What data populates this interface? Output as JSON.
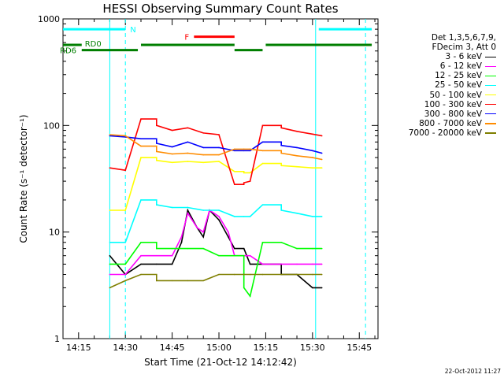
{
  "chart_data": {
    "type": "line",
    "title": "HESSI Observing Summary Count Rates",
    "xlabel": "Start Time (21-Oct-12 14:12:42)",
    "ylabel": "Count Rate (s⁻¹ detector⁻¹)",
    "yscale": "log",
    "ylim": [
      1,
      1000
    ],
    "xlim": [
      "14:10",
      "15:51"
    ],
    "x_ticks": [
      "14:15",
      "14:30",
      "14:45",
      "15:00",
      "15:15",
      "15:30",
      "15:45"
    ],
    "y_ticks": [
      "1",
      "10",
      "100",
      "1000"
    ],
    "legend_position": "right",
    "legend_header": [
      "Det 1,3,5,6,7,9,",
      "FDecim 3, Att 0"
    ],
    "timestamp": "22-Oct-2012 11:27",
    "flag_labels": {
      "N": "N",
      "F": "F",
      "RD0": "RD0",
      "RD6": "RD6"
    },
    "flag_bars": [
      {
        "name": "N",
        "color": "#00ffff",
        "y": 800,
        "segments": [
          [
            "14:10",
            "14:30"
          ],
          [
            "15:32",
            "15:49"
          ]
        ]
      },
      {
        "name": "F",
        "color": "#ff0000",
        "y": 680,
        "segments": [
          [
            "14:52",
            "15:05"
          ]
        ]
      },
      {
        "name": "RD0",
        "color": "#007f00",
        "y": 570,
        "segments": [
          [
            "14:10",
            "14:16"
          ],
          [
            "14:35",
            "15:05"
          ],
          [
            "15:15",
            "15:49"
          ]
        ]
      },
      {
        "name": "RD6",
        "color": "#007f00",
        "y": 510,
        "segments": [
          [
            "14:16",
            "14:34"
          ],
          [
            "15:05",
            "15:14"
          ]
        ]
      }
    ],
    "vlines": [
      {
        "t": "14:25",
        "color": "#00ffff",
        "style": "solid"
      },
      {
        "t": "14:30",
        "color": "#00ffff",
        "style": "dashed"
      },
      {
        "t": "15:31",
        "color": "#00ffff",
        "style": "solid"
      },
      {
        "t": "15:47",
        "color": "#00ffff",
        "style": "dashed"
      }
    ],
    "x_breaks": [
      "14:25",
      "14:35",
      "15:05",
      "15:14",
      "15:33"
    ],
    "series": [
      {
        "name": "3 - 6 keV",
        "color": "#000000",
        "x": [
          "14:25",
          "14:30",
          "14:35",
          "14:40",
          "14:45",
          "14:48",
          "14:50",
          "14:53",
          "14:55",
          "14:57",
          "15:00",
          "15:03",
          "15:05",
          "15:08",
          "15:10",
          "15:14",
          "15:20",
          "15:25",
          "15:30",
          "15:33"
        ],
        "values": [
          6,
          4,
          5,
          5,
          5,
          8,
          16,
          11,
          9,
          16,
          13,
          9,
          7,
          7,
          5,
          5,
          4,
          4,
          3,
          3
        ]
      },
      {
        "name": "6 - 12 keV",
        "color": "#ff00ff",
        "x": [
          "14:25",
          "14:30",
          "14:35",
          "14:40",
          "14:45",
          "14:48",
          "14:50",
          "14:53",
          "14:55",
          "14:57",
          "15:00",
          "15:03",
          "15:05",
          "15:08",
          "15:10",
          "15:14",
          "15:20",
          "15:25",
          "15:30",
          "15:33"
        ],
        "values": [
          4,
          4,
          6,
          6,
          6,
          9,
          15,
          11,
          10,
          16,
          14,
          10,
          6,
          6,
          6,
          5,
          5,
          5,
          5,
          5
        ]
      },
      {
        "name": "12 - 25 keV",
        "color": "#00ff00",
        "x": [
          "14:25",
          "14:30",
          "14:35",
          "14:40",
          "14:45",
          "14:50",
          "14:55",
          "15:00",
          "15:05",
          "15:08",
          "15:10",
          "15:14",
          "15:20",
          "15:25",
          "15:30",
          "15:33"
        ],
        "values": [
          5,
          5,
          8,
          7,
          7,
          7,
          7,
          6,
          6,
          3,
          2.5,
          8,
          8,
          7,
          7,
          7
        ]
      },
      {
        "name": "25 - 50 keV",
        "color": "#00ffff",
        "x": [
          "14:25",
          "14:30",
          "14:35",
          "14:40",
          "14:45",
          "14:50",
          "14:55",
          "15:00",
          "15:05",
          "15:08",
          "15:10",
          "15:14",
          "15:20",
          "15:25",
          "15:30",
          "15:33"
        ],
        "values": [
          8,
          8,
          20,
          18,
          17,
          17,
          16,
          16,
          14,
          14,
          14,
          18,
          16,
          15,
          14,
          14
        ]
      },
      {
        "name": "50 - 100 keV",
        "color": "#ffff00",
        "x": [
          "14:25",
          "14:30",
          "14:35",
          "14:40",
          "14:45",
          "14:50",
          "14:55",
          "15:00",
          "15:05",
          "15:08",
          "15:10",
          "15:14",
          "15:20",
          "15:25",
          "15:30",
          "15:33"
        ],
        "values": [
          16,
          16,
          50,
          47,
          45,
          46,
          45,
          46,
          37,
          36,
          36,
          44,
          42,
          41,
          40,
          40
        ]
      },
      {
        "name": "100 - 300 keV",
        "color": "#ff0000",
        "x": [
          "14:25",
          "14:30",
          "14:35",
          "14:40",
          "14:45",
          "14:50",
          "14:55",
          "15:00",
          "15:05",
          "15:08",
          "15:10",
          "15:14",
          "15:20",
          "15:25",
          "15:30",
          "15:33"
        ],
        "values": [
          40,
          38,
          115,
          100,
          90,
          95,
          85,
          82,
          28,
          29,
          30,
          100,
          95,
          88,
          83,
          80
        ]
      },
      {
        "name": "300 - 800 keV",
        "color": "#0000ff",
        "x": [
          "14:25",
          "14:30",
          "14:35",
          "14:40",
          "14:45",
          "14:50",
          "14:55",
          "15:00",
          "15:05",
          "15:08",
          "15:10",
          "15:14",
          "15:20",
          "15:25",
          "15:30",
          "15:33"
        ],
        "values": [
          80,
          78,
          75,
          68,
          63,
          70,
          62,
          62,
          58,
          58,
          58,
          70,
          65,
          62,
          58,
          55
        ]
      },
      {
        "name": "800 - 7000 keV",
        "color": "#ff8c00",
        "x": [
          "14:25",
          "14:30",
          "14:35",
          "14:40",
          "14:45",
          "14:50",
          "14:55",
          "15:00",
          "15:05",
          "15:08",
          "15:10",
          "15:14",
          "15:20",
          "15:25",
          "15:30",
          "15:33"
        ],
        "values": [
          82,
          80,
          64,
          57,
          54,
          55,
          53,
          53,
          60,
          60,
          60,
          58,
          55,
          52,
          50,
          48
        ]
      },
      {
        "name": "7000 - 20000 keV",
        "color": "#7f7f00",
        "x": [
          "14:25",
          "14:30",
          "14:35",
          "14:40",
          "14:45",
          "14:50",
          "14:55",
          "15:00",
          "15:05",
          "15:10",
          "15:14",
          "15:20",
          "15:25",
          "15:30",
          "15:33"
        ],
        "values": [
          3,
          3.5,
          4,
          3.5,
          3.5,
          3.5,
          3.5,
          4,
          4,
          4,
          4,
          4,
          4,
          4,
          4
        ]
      }
    ]
  }
}
